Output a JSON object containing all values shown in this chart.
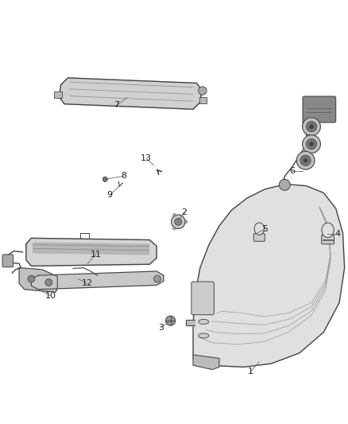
{
  "background_color": "#ffffff",
  "fig_width": 4.38,
  "fig_height": 5.33,
  "dpi": 100,
  "line_color": "#444444",
  "label_color": "#222222",
  "font_size_label": 8,
  "parts_positions": {
    "1": {
      "pt": [
        0.745,
        0.07
      ],
      "lbl": [
        0.72,
        0.042
      ]
    },
    "2": {
      "pt": [
        0.51,
        0.47
      ],
      "lbl": [
        0.53,
        0.5
      ]
    },
    "3": {
      "pt": [
        0.49,
        0.188
      ],
      "lbl": [
        0.462,
        0.168
      ]
    },
    "4": {
      "pt": [
        0.94,
        0.438
      ],
      "lbl": [
        0.97,
        0.438
      ]
    },
    "5": {
      "pt": [
        0.74,
        0.44
      ],
      "lbl": [
        0.762,
        0.452
      ]
    },
    "6": {
      "pt": [
        0.87,
        0.618
      ],
      "lbl": [
        0.84,
        0.618
      ]
    },
    "7": {
      "pt": [
        0.365,
        0.828
      ],
      "lbl": [
        0.335,
        0.806
      ]
    },
    "8": {
      "pt": [
        0.302,
        0.594
      ],
      "lbl": [
        0.355,
        0.603
      ]
    },
    "9": {
      "pt": [
        0.34,
        0.572
      ],
      "lbl": [
        0.315,
        0.548
      ]
    },
    "10": {
      "pt": [
        0.102,
        0.282
      ],
      "lbl": [
        0.145,
        0.26
      ]
    },
    "11": {
      "pt": [
        0.252,
        0.352
      ],
      "lbl": [
        0.275,
        0.378
      ]
    },
    "12": {
      "pt": [
        0.225,
        0.308
      ],
      "lbl": [
        0.25,
        0.295
      ]
    },
    "13": {
      "pt": [
        0.442,
        0.634
      ],
      "lbl": [
        0.42,
        0.654
      ]
    }
  }
}
